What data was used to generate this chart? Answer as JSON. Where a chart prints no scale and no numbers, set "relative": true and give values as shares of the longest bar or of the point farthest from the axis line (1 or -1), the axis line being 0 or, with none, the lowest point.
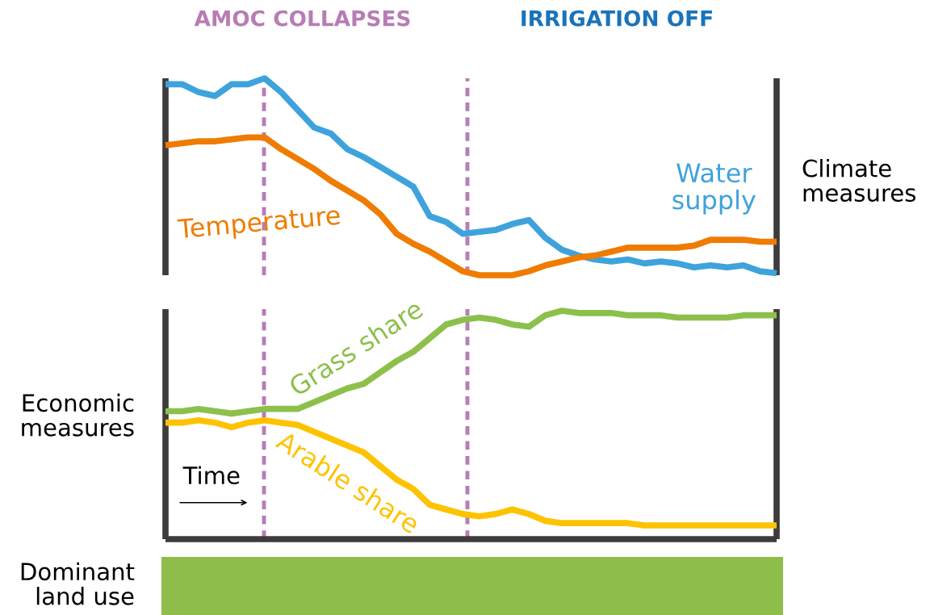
{
  "chart_data": [
    {
      "type": "line",
      "relative": true,
      "ylabel": "Climate\nmeasures",
      "legend": false,
      "categories": [
        null,
        null,
        null,
        null,
        null,
        null,
        null,
        null,
        null,
        null,
        null,
        null,
        null,
        null,
        null,
        null,
        null,
        null,
        null,
        null,
        null,
        null,
        null,
        null,
        null,
        null,
        null,
        null,
        null,
        null,
        null,
        null,
        null,
        null,
        null,
        null,
        null,
        null
      ],
      "series": [
        {
          "name": "Water\nsupply",
          "color": "#3ea3dc",
          "values": [
            0.97,
            0.97,
            0.93,
            0.91,
            0.97,
            0.97,
            1.0,
            0.93,
            0.84,
            0.75,
            0.72,
            0.64,
            0.6,
            0.55,
            0.5,
            0.45,
            0.3,
            0.27,
            0.21,
            0.22,
            0.23,
            0.26,
            0.28,
            0.19,
            0.13,
            0.1,
            0.08,
            0.07,
            0.08,
            0.06,
            0.07,
            0.06,
            0.04,
            0.05,
            0.04,
            0.05,
            0.02,
            0.01
          ]
        },
        {
          "name": "Temperature",
          "color": "#ef7c00",
          "values": [
            0.66,
            0.67,
            0.68,
            0.68,
            0.69,
            0.7,
            0.7,
            0.64,
            0.59,
            0.54,
            0.48,
            0.43,
            0.38,
            0.31,
            0.21,
            0.16,
            0.12,
            0.07,
            0.02,
            0,
            0,
            0,
            0.02,
            0.05,
            0.07,
            0.09,
            0.1,
            0.12,
            0.14,
            0.14,
            0.14,
            0.14,
            0.15,
            0.18,
            0.18,
            0.18,
            0.17,
            0.17
          ]
        }
      ],
      "annotations": [
        "AMOC COLLAPSES",
        "IRRIGATION OFF"
      ]
    },
    {
      "type": "line",
      "relative": true,
      "ylabel": "Economic\nmeasures",
      "legend": false,
      "categories": [
        null,
        null,
        null,
        null,
        null,
        null,
        null,
        null,
        null,
        null,
        null,
        null,
        null,
        null,
        null,
        null,
        null,
        null,
        null,
        null,
        null,
        null,
        null,
        null,
        null,
        null,
        null,
        null,
        null,
        null,
        null,
        null,
        null,
        null,
        null,
        null,
        null,
        null
      ],
      "series": [
        {
          "name": "Grass share",
          "color": "#8dc04b",
          "values": [
            0.56,
            0.56,
            0.57,
            0.56,
            0.55,
            0.56,
            0.57,
            0.57,
            0.57,
            0.6,
            0.63,
            0.66,
            0.68,
            0.73,
            0.78,
            0.82,
            0.88,
            0.94,
            0.96,
            0.97,
            0.96,
            0.94,
            0.93,
            0.98,
            1.0,
            0.99,
            0.99,
            0.99,
            0.98,
            0.98,
            0.98,
            0.97,
            0.97,
            0.97,
            0.97,
            0.98,
            0.98,
            0.98
          ]
        },
        {
          "name": "Arable share",
          "color": "#fdc300",
          "values": [
            0.51,
            0.51,
            0.52,
            0.51,
            0.49,
            0.51,
            0.52,
            0.51,
            0.5,
            0.47,
            0.44,
            0.41,
            0.38,
            0.32,
            0.26,
            0.22,
            0.15,
            0.13,
            0.11,
            0.1,
            0.11,
            0.13,
            0.11,
            0.08,
            0.07,
            0.07,
            0.07,
            0.07,
            0.07,
            0.06,
            0.06,
            0.06,
            0.06,
            0.06,
            0.06,
            0.06,
            0.06,
            0.06
          ]
        }
      ],
      "annotations": [
        "Time"
      ]
    },
    {
      "type": "other",
      "ylabel": "Dominant\nland use",
      "color": "#8fbd4b"
    }
  ]
}
